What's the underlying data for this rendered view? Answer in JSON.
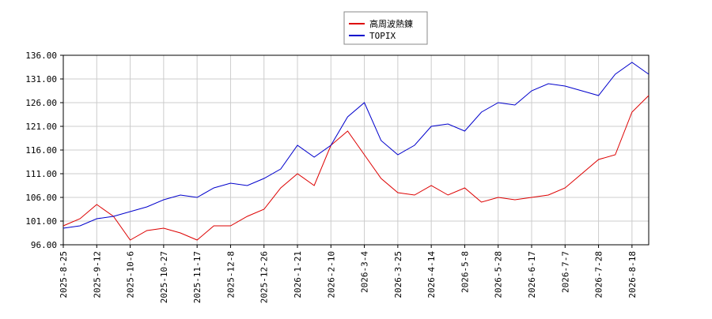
{
  "chart_data": {
    "type": "line",
    "categories": [
      "2025-8-25",
      null,
      "2025-9-12",
      null,
      "2025-10-6",
      null,
      "2025-10-27",
      null,
      "2025-11-17",
      null,
      "2025-12-8",
      null,
      "2025-12-26",
      null,
      "2026-1-21",
      null,
      "2026-2-10",
      null,
      "2026-3-4",
      null,
      "2026-3-25",
      null,
      "2026-4-14",
      null,
      "2026-5-8",
      null,
      "2026-5-28",
      null,
      "2026-6-17",
      null,
      "2026-7-7",
      null,
      "2026-7-28",
      null,
      "2026-8-18",
      null
    ],
    "series": [
      {
        "name": "高周波熱錬",
        "color": "#dd0000",
        "values": [
          100,
          101.5,
          104.5,
          102,
          97,
          99,
          99.5,
          98.5,
          97,
          100,
          100,
          102,
          103.5,
          108,
          111,
          108.5,
          117,
          120,
          115,
          110,
          107,
          106.5,
          108.5,
          106.5,
          108,
          105,
          106,
          105.5,
          106,
          106.5,
          108,
          111,
          114,
          115,
          124,
          127.5
        ]
      },
      {
        "name": "TOPIX",
        "color": "#0000cc",
        "values": [
          99.5,
          100,
          101.5,
          102,
          103,
          104,
          105.5,
          106.5,
          106,
          108,
          109,
          108.5,
          110,
          112,
          117,
          114.5,
          117,
          123,
          126,
          118,
          115,
          117,
          121,
          121.5,
          120,
          124,
          126,
          125.5,
          128.5,
          130,
          129.5,
          128.5,
          127.5,
          132,
          134.5,
          132
        ]
      }
    ],
    "ylim": [
      96,
      136
    ],
    "yticks": [
      {
        "value": 96,
        "label": "96.00"
      },
      {
        "value": 101,
        "label": "101.00"
      },
      {
        "value": 106,
        "label": "106.00"
      },
      {
        "value": 111,
        "label": "111.00"
      },
      {
        "value": 116,
        "label": "116.00"
      },
      {
        "value": 121,
        "label": "121.00"
      },
      {
        "value": 126,
        "label": "126.00"
      },
      {
        "value": 131,
        "label": "131.00"
      },
      {
        "value": 136,
        "label": "136.00"
      }
    ],
    "grid": true
  }
}
